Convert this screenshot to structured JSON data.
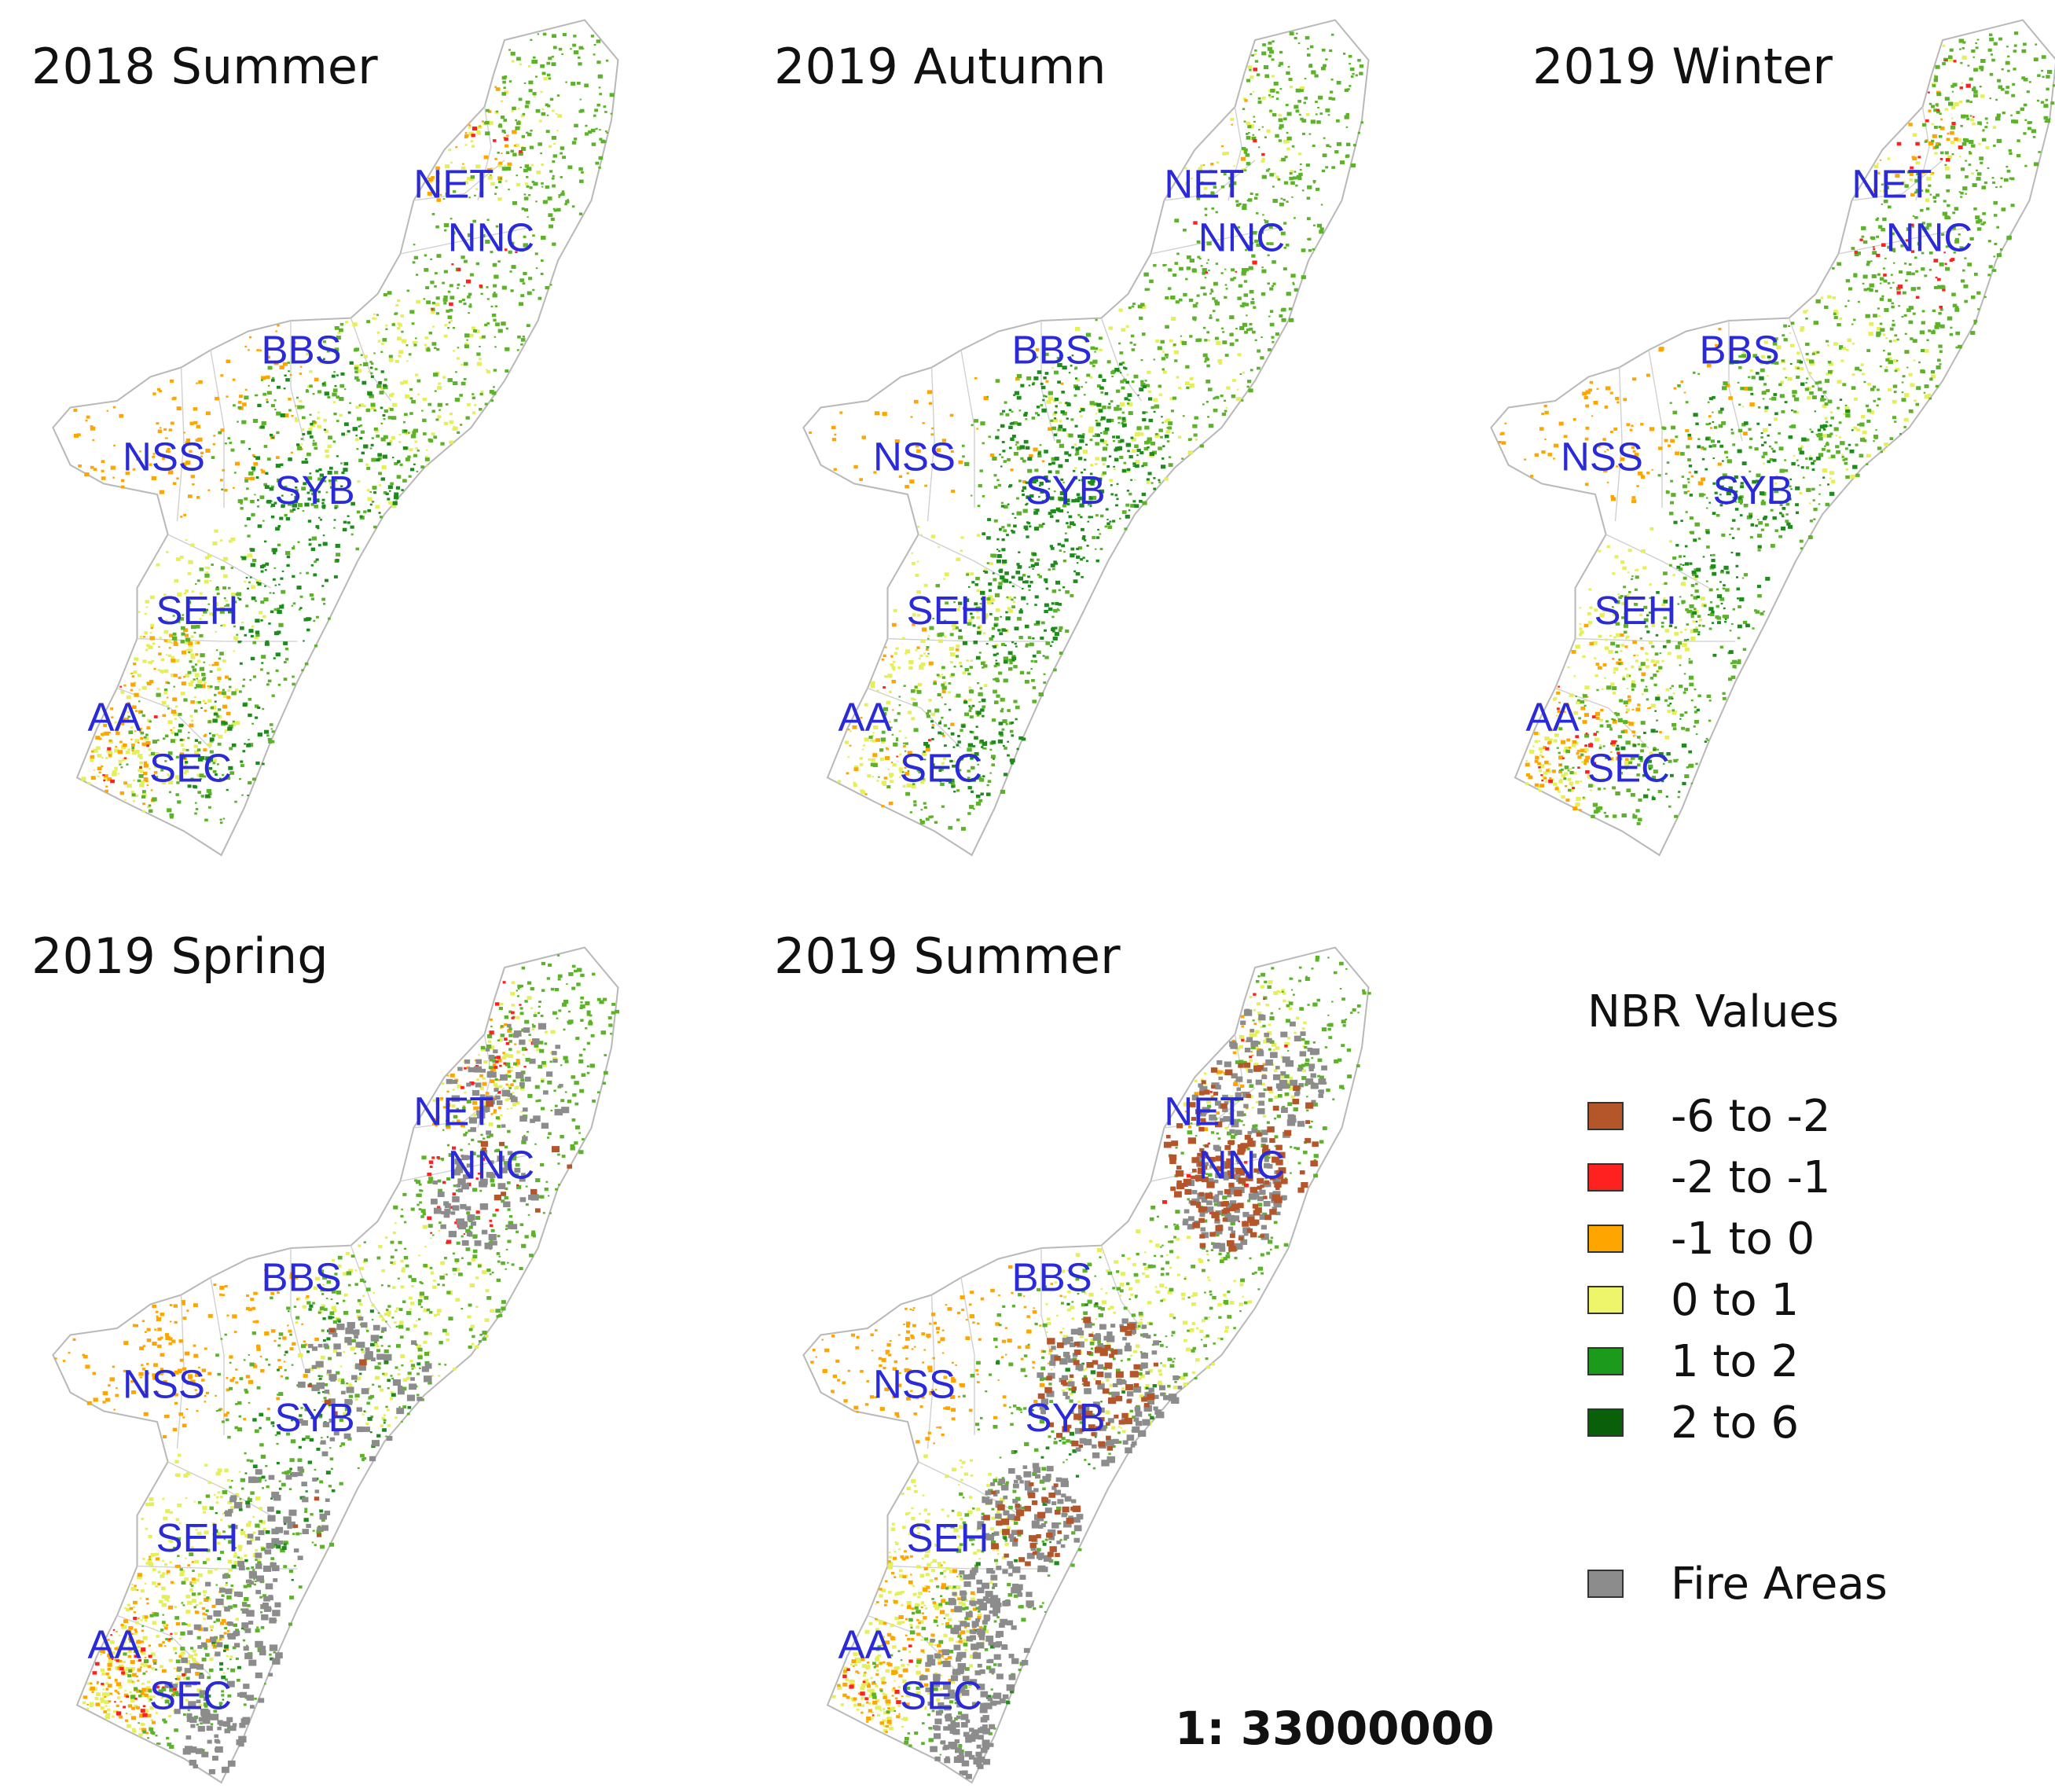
{
  "panels": [
    {
      "title": "2018 Summer",
      "fills": {
        "green": 0.45,
        "dark": 0.25,
        "yellow": 0.45,
        "orange": 0.35,
        "red": 0.05,
        "brown": 0.0,
        "grey": 0.0
      },
      "fire_areas": false
    },
    {
      "title": "2019 Autumn",
      "fills": {
        "green": 0.5,
        "dark": 0.45,
        "yellow": 0.3,
        "orange": 0.12,
        "red": 0.02,
        "brown": 0.0,
        "grey": 0.0
      },
      "fire_areas": false
    },
    {
      "title": "2019 Winter",
      "fills": {
        "green": 0.55,
        "dark": 0.2,
        "yellow": 0.35,
        "orange": 0.25,
        "red": 0.12,
        "brown": 0.0,
        "grey": 0.0
      },
      "fire_areas": false
    },
    {
      "title": "2019 Spring",
      "fills": {
        "green": 0.45,
        "dark": 0.1,
        "yellow": 0.55,
        "orange": 0.45,
        "red": 0.18,
        "brown": 0.02,
        "grey": 0.3
      },
      "fire_areas": true
    },
    {
      "title": "2019 Summer",
      "fills": {
        "green": 0.35,
        "dark": 0.05,
        "yellow": 0.55,
        "orange": 0.4,
        "red": 0.08,
        "brown": 0.3,
        "grey": 0.5
      },
      "fire_areas": true
    }
  ],
  "region_labels": [
    "NET",
    "NNC",
    "BBS",
    "NSS",
    "SYB",
    "SEH",
    "AA",
    "SEC"
  ],
  "legend": {
    "title": "NBR Values",
    "items": [
      {
        "label": "-6 to -2",
        "color": "#b5552a"
      },
      {
        "label": "-2 to -1",
        "color": "#ff2020"
      },
      {
        "label": "-1 to 0",
        "color": "#ffa500"
      },
      {
        "label": "0 to 1",
        "color": "#eef56a"
      },
      {
        "label": "1 to 2",
        "color": "#1c9a1c"
      },
      {
        "label": "2 to 6",
        "color": "#0a600a"
      }
    ],
    "fire": {
      "label": "Fire Areas",
      "color": "#8c8c8c"
    }
  },
  "scale": "1: 33000000"
}
